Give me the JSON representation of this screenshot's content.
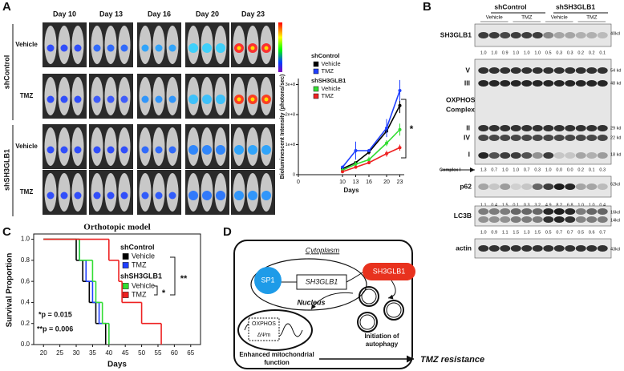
{
  "panel_labels": [
    "A",
    "B",
    "C",
    "D"
  ],
  "panel_a": {
    "days": [
      "Day 10",
      "Day 13",
      "Day 16",
      "Day 20",
      "Day 23"
    ],
    "groups": [
      {
        "name": "shControl",
        "rows": [
          "Vehicle",
          "TMZ"
        ]
      },
      {
        "name": "shSH3GLB1",
        "rows": [
          "Vehicle",
          "TMZ"
        ]
      }
    ]
  },
  "chart_data": [
    {
      "type": "line",
      "legend_groups": [
        "shControl",
        "shSH3GLB1"
      ],
      "x": [
        10,
        13,
        16,
        20,
        23
      ],
      "xlim": [
        0,
        24
      ],
      "xticks": [
        0,
        10,
        13,
        16,
        20,
        23
      ],
      "ylim": [
        0,
        320000000
      ],
      "yticks": [
        0,
        {
          "value": 100000000,
          "label": "1e+8"
        },
        {
          "value": 200000000,
          "label": "2e+8"
        },
        {
          "value": 300000000,
          "label": "3e+8"
        }
      ],
      "ylabel": "Bioluminescent Intensity (photons/sec)",
      "xlabel": "Days",
      "annotation": "*",
      "series": [
        {
          "name": "Vehicle",
          "color": "#000000",
          "values": [
            20000000,
            40000000,
            75000000,
            145000000,
            230000000
          ],
          "errors": [
            3000000,
            5000000,
            8000000,
            10000000,
            25000000
          ]
        },
        {
          "name": "TMZ",
          "color": "#1f3fff",
          "values": [
            25000000,
            80000000,
            80000000,
            155000000,
            280000000
          ],
          "errors": [
            5000000,
            30000000,
            5000000,
            30000000,
            35000000
          ]
        },
        {
          "name": "Vehicle",
          "color": "#33dd33",
          "values": [
            15000000,
            35000000,
            50000000,
            105000000,
            150000000
          ],
          "errors": [
            4000000,
            10000000,
            10000000,
            10000000,
            20000000
          ]
        },
        {
          "name": "TMZ",
          "color": "#ee2222",
          "values": [
            10000000,
            25000000,
            40000000,
            70000000,
            90000000
          ],
          "errors": [
            3000000,
            5000000,
            5000000,
            10000000,
            10000000
          ]
        }
      ]
    },
    {
      "type": "step",
      "title": "Orthotopic model",
      "legend_groups": [
        "shControl",
        "shSH3GLB1"
      ],
      "xlim": [
        17,
        68
      ],
      "xticks": [
        20,
        25,
        30,
        35,
        40,
        45,
        50,
        55,
        60,
        65
      ],
      "ylim": [
        0,
        1.05
      ],
      "yticks": [
        {
          "value": 0,
          "label": "0.0"
        },
        0.2,
        0.4,
        0.6,
        0.8,
        {
          "value": 1,
          "label": "1.0"
        }
      ],
      "ylabel": "Survival Proportion",
      "xlabel": "Days",
      "annotations": [
        "*",
        "**"
      ],
      "p_values": [
        "*p = 0.015",
        "**p = 0.006"
      ],
      "series": [
        {
          "name": "Vehicle",
          "color": "#000000",
          "x": [
            20,
            30,
            32,
            34,
            36,
            39
          ],
          "values": [
            1,
            0.8,
            0.6,
            0.4,
            0.2,
            0
          ]
        },
        {
          "name": "TMZ",
          "color": "#1f3fff",
          "x": [
            20,
            31,
            33,
            35,
            37,
            40
          ],
          "values": [
            1,
            0.8,
            0.6,
            0.4,
            0.2,
            0
          ]
        },
        {
          "name": "Vehicle",
          "color": "#33dd33",
          "x": [
            20,
            31,
            35,
            36,
            38,
            40
          ],
          "values": [
            1,
            0.8,
            0.6,
            0.4,
            0.2,
            0
          ]
        },
        {
          "name": "TMZ",
          "color": "#ee2222",
          "x": [
            20,
            40,
            43,
            44,
            50,
            56
          ],
          "values": [
            1,
            0.8,
            0.6,
            0.4,
            0.2,
            0
          ]
        }
      ]
    }
  ],
  "panel_b": {
    "groups": [
      "shControl",
      "shSH3GLB1"
    ],
    "treatments": [
      "Vehicle",
      "TMZ",
      "Vehicle",
      "TMZ"
    ],
    "blots": [
      {
        "label": "SH3GLB1",
        "markers": [
          "40kd"
        ],
        "quant": [
          "1.0",
          "1.0",
          "0.9",
          "1.0",
          "1.0",
          "1.0",
          "0.5",
          "0.3",
          "0.3",
          "0.2",
          "0.2",
          "0.1"
        ]
      },
      {
        "label_lines": [
          "OXPHOS",
          "Complex"
        ],
        "bands": [
          "V",
          "III",
          "II",
          "IV",
          "I"
        ],
        "markers": [
          "54 kd",
          "48 kd",
          "29 kd",
          "22 kd",
          "18 kd"
        ],
        "quant_label": "Complex I",
        "quant": [
          "1.3",
          "0.7",
          "1.0",
          "1.0",
          "0.7",
          "0.3",
          "1.0",
          "0.0",
          "0.0",
          "0.2",
          "0.1",
          "0.3"
        ]
      },
      {
        "label": "p62",
        "markers": [
          "62kd"
        ],
        "quant": [
          "1.1",
          "0.4",
          "1.5",
          "0.1",
          "0.3",
          "3.2",
          "4.9",
          "8.2",
          "6.8",
          "1.0",
          "1.0",
          "0.4"
        ]
      },
      {
        "label": "LC3B",
        "markers": [
          "16kd",
          "14kd"
        ],
        "quant": [
          "1.0",
          "0.9",
          "1.1",
          "1.5",
          "1.3",
          "1.5",
          "0.5",
          "0.7",
          "0.7",
          "0.5",
          "0.6",
          "0.7"
        ]
      },
      {
        "label": "actin",
        "markers": [
          "43kd"
        ]
      }
    ]
  },
  "panel_d": {
    "cytoplasm": "Cytoplasm",
    "sp1": "SP1",
    "gene": "SH3GLB1",
    "nucleus": "Nucleus",
    "protein": "SH3GLB1",
    "oxphos": "OXPHOS",
    "membrane_potential": "ΔΨm",
    "autophagy": [
      "Initiation of",
      "autophagy"
    ],
    "mito_function": [
      "Enhanced mitochondrial",
      "function"
    ],
    "outcome": "TMZ resistance"
  }
}
